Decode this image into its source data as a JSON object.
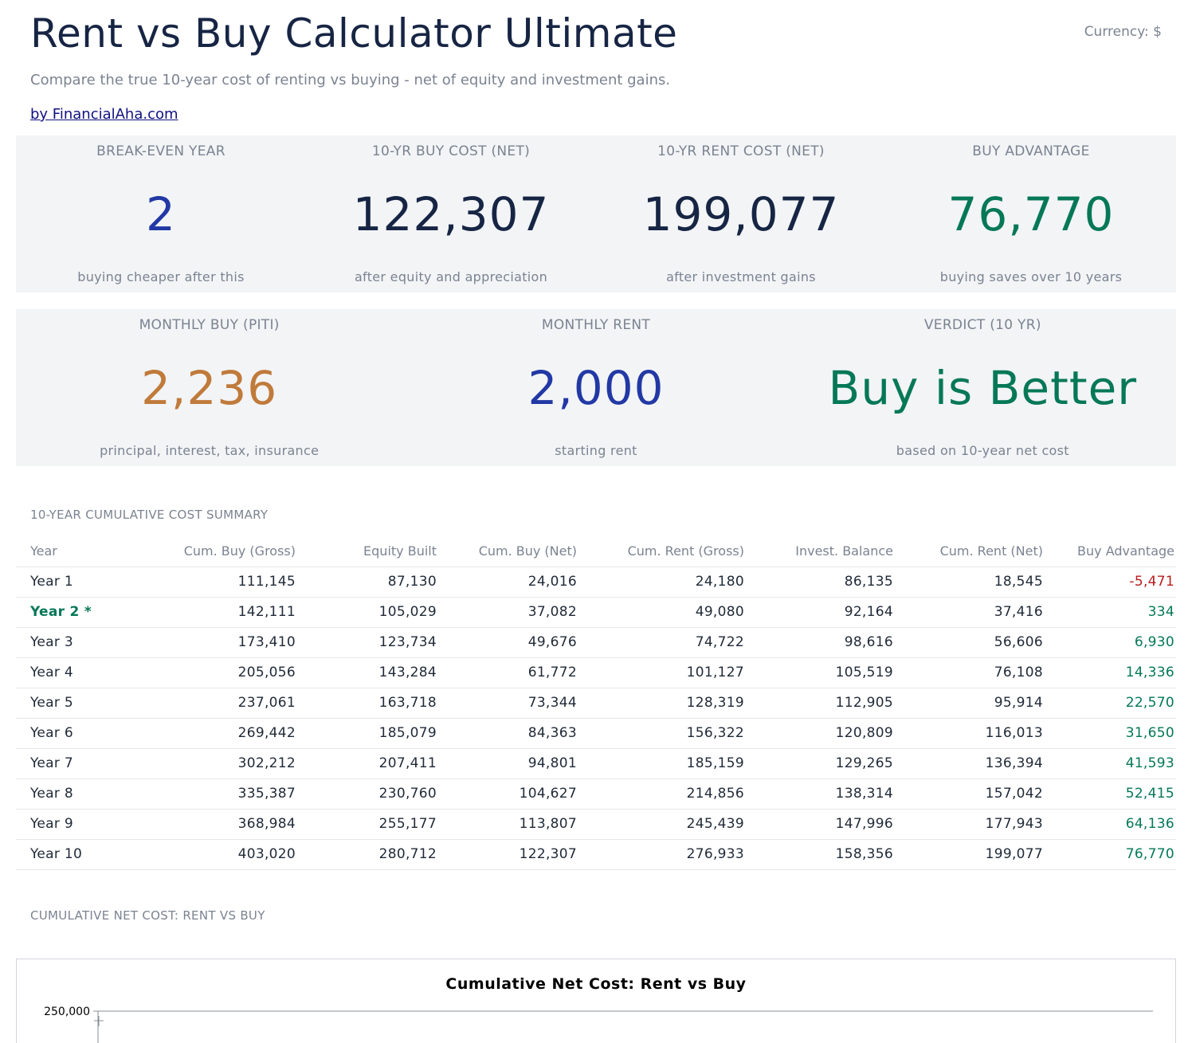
{
  "header": {
    "title": "Rent vs Buy Calculator Ultimate",
    "currency": "Currency: $",
    "subtitle": "Compare the true 10-year cost of renting vs buying - net of equity and investment gains.",
    "byline": "by FinancialAha.com"
  },
  "kpis_row1": [
    {
      "label": "BREAK-EVEN YEAR",
      "value": "2",
      "note": "buying cheaper after this",
      "color": "#2238a5"
    },
    {
      "label": "10-YR BUY COST (NET)",
      "value": "122,307",
      "note": "after equity and appreciation",
      "color": "#172544"
    },
    {
      "label": "10-YR RENT COST (NET)",
      "value": "199,077",
      "note": "after investment gains",
      "color": "#172544"
    },
    {
      "label": "BUY ADVANTAGE",
      "value": "76,770",
      "note": "buying saves over 10 years",
      "color": "#047857"
    }
  ],
  "kpis_row2": [
    {
      "label": "MONTHLY BUY (PITI)",
      "value": "2,236",
      "note": "principal, interest, tax, insurance",
      "color": "#c07a3a"
    },
    {
      "label": "MONTHLY RENT",
      "value": "2,000",
      "note": "starting rent",
      "color": "#2238a5"
    },
    {
      "label": "VERDICT (10 YR)",
      "value": "Buy is Better",
      "note": "based on 10-year net cost",
      "color": "#047857"
    }
  ],
  "summary": {
    "section_title": "10-YEAR CUMULATIVE COST SUMMARY",
    "columns": [
      "Year",
      "Cum. Buy (Gross)",
      "Equity Built",
      "Cum. Buy (Net)",
      "Cum. Rent (Gross)",
      "Invest. Balance",
      "Cum. Rent (Net)",
      "Buy Advantage"
    ],
    "rows": [
      [
        "Year 1",
        "111,145",
        "87,130",
        "24,016",
        "24,180",
        "86,135",
        "18,545",
        "-5,471"
      ],
      [
        "Year 2 *",
        "142,111",
        "105,029",
        "37,082",
        "49,080",
        "92,164",
        "37,416",
        "334"
      ],
      [
        "Year 3",
        "173,410",
        "123,734",
        "49,676",
        "74,722",
        "98,616",
        "56,606",
        "6,930"
      ],
      [
        "Year 4",
        "205,056",
        "143,284",
        "61,772",
        "101,127",
        "105,519",
        "76,108",
        "14,336"
      ],
      [
        "Year 5",
        "237,061",
        "163,718",
        "73,344",
        "128,319",
        "112,905",
        "95,914",
        "22,570"
      ],
      [
        "Year 6",
        "269,442",
        "185,079",
        "84,363",
        "156,322",
        "120,809",
        "116,013",
        "31,650"
      ],
      [
        "Year 7",
        "302,212",
        "207,411",
        "94,801",
        "185,159",
        "129,265",
        "136,394",
        "41,593"
      ],
      [
        "Year 8",
        "335,387",
        "230,760",
        "104,627",
        "214,856",
        "138,314",
        "157,042",
        "52,415"
      ],
      [
        "Year 9",
        "368,984",
        "255,177",
        "113,807",
        "245,439",
        "147,996",
        "177,943",
        "64,136"
      ],
      [
        "Year 10",
        "403,020",
        "280,712",
        "122,307",
        "276,933",
        "158,356",
        "199,077",
        "76,770"
      ]
    ]
  },
  "chart": {
    "section_title": "CUMULATIVE NET COST: RENT VS BUY"
  },
  "chart_data": {
    "type": "line",
    "title": "Cumulative Net Cost: Rent vs Buy",
    "y_ticks": [
      "250,000"
    ],
    "ylim_top": 250000
  }
}
